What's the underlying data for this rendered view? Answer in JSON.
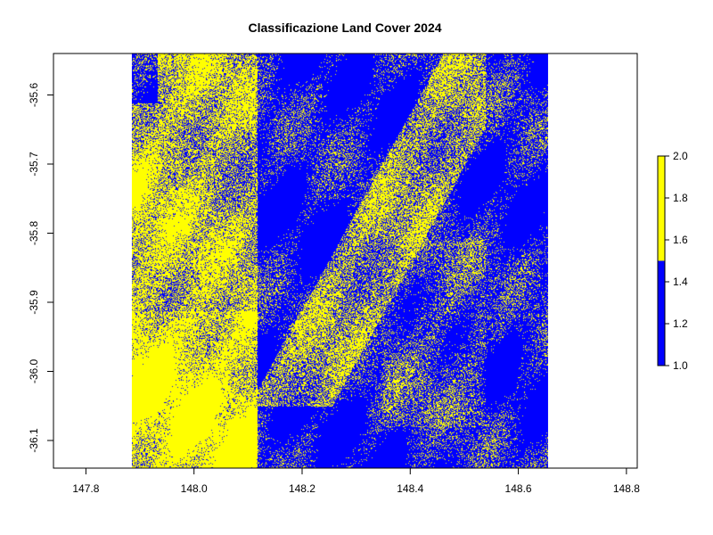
{
  "chart_data": {
    "type": "heatmap",
    "title": "Classificazione Land Cover 2024",
    "xlabel": "",
    "ylabel": "",
    "xlim": [
      147.74,
      148.82
    ],
    "ylim": [
      -36.14,
      -35.54
    ],
    "raster_extent": {
      "x": [
        147.885,
        148.655
      ],
      "y": [
        -36.14,
        -35.54
      ]
    },
    "x_ticks": [
      147.8,
      148.0,
      148.2,
      148.4,
      148.6,
      148.8
    ],
    "x_tick_labels": [
      "147.8",
      "148.0",
      "148.2",
      "148.4",
      "148.6",
      "148.8"
    ],
    "y_ticks": [
      -35.6,
      -35.7,
      -35.8,
      -35.9,
      -36.0,
      -36.1
    ],
    "y_tick_labels": [
      "-35.6",
      "-35.7",
      "-35.8",
      "-35.9",
      "-36.0",
      "-36.1"
    ],
    "classes": [
      {
        "value": 1,
        "color": "#0000FF"
      },
      {
        "value": 2,
        "color": "#FFFF00"
      }
    ],
    "legend": {
      "position": "right",
      "range": [
        1.0,
        2.0
      ],
      "break": 1.5,
      "ticks": [
        1.0,
        1.2,
        1.4,
        1.6,
        1.8,
        2.0
      ],
      "tick_labels": [
        "1.0",
        "1.2",
        "1.4",
        "1.6",
        "1.8",
        "2.0"
      ]
    },
    "grid": false
  }
}
